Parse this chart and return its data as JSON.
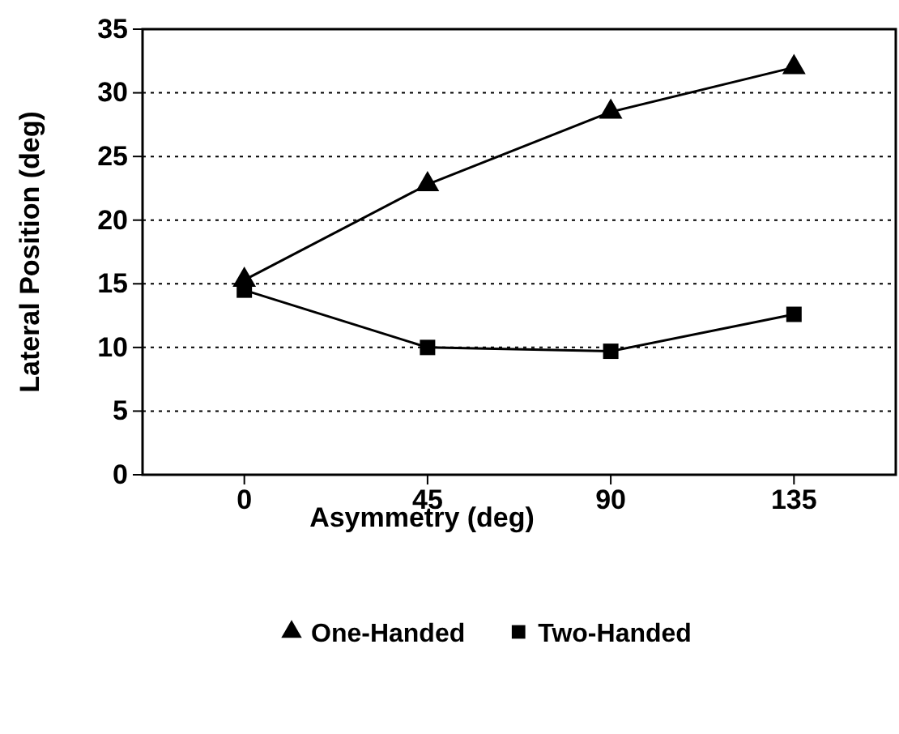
{
  "chart_data": {
    "type": "line",
    "xlabel": "Asymmetry (deg)",
    "ylabel": "Lateral Position (deg)",
    "x": [
      0,
      45,
      90,
      135
    ],
    "xlim": [
      -25,
      160
    ],
    "xticks": [
      0,
      45,
      90,
      135
    ],
    "ylim": [
      0,
      35
    ],
    "yticks": [
      0,
      5,
      10,
      15,
      20,
      25,
      30,
      35
    ],
    "grid": "y",
    "legend": "bottom",
    "line_style": "solid",
    "series": [
      {
        "name": "One-Handed",
        "color": "#000000",
        "marker": "triangle",
        "values": [
          15.3,
          22.8,
          28.5,
          32
        ]
      },
      {
        "name": "Two-Handed",
        "color": "#000000",
        "marker": "square",
        "values": [
          14.5,
          10,
          9.7,
          12.6
        ]
      }
    ]
  }
}
